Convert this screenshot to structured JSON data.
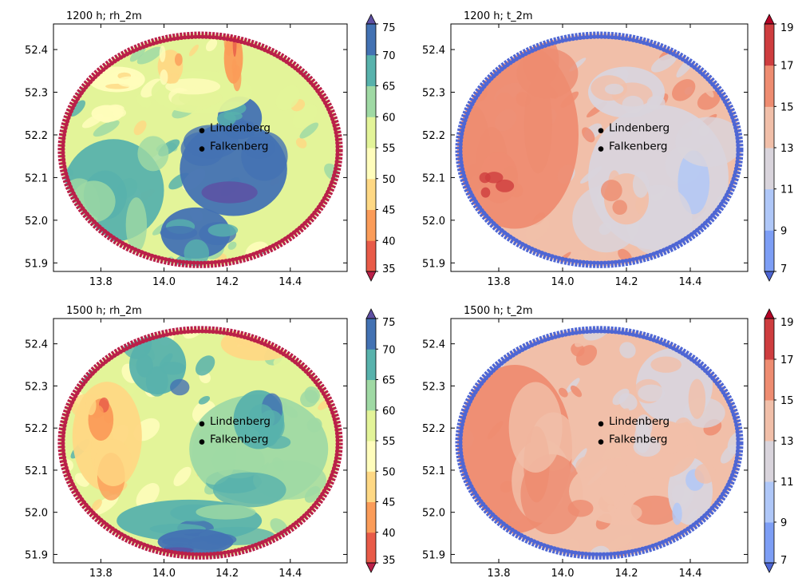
{
  "chart_data": [
    {
      "type": "heatmap",
      "title": "1200 h; rh_2m",
      "variable": "rh_2m",
      "colormap": "Spectral",
      "xlim": [
        13.65,
        14.58
      ],
      "ylim": [
        51.88,
        52.46
      ],
      "xticks": [
        "13.8",
        "14.0",
        "14.2",
        "14.4"
      ],
      "yticks": [
        "51.9",
        "52.0",
        "52.1",
        "52.2",
        "52.3",
        "52.4"
      ],
      "colorbar": {
        "min": 35,
        "max": 75,
        "step": 5,
        "extend": "both",
        "labels": [
          "35",
          "40",
          "45",
          "50",
          "55",
          "60",
          "65",
          "70",
          "75"
        ]
      },
      "annotations": [
        {
          "label": "Lindenberg",
          "lon": 14.12,
          "lat": 52.21
        },
        {
          "label": "Falkenberg",
          "lon": 14.12,
          "lat": 52.167
        }
      ],
      "features": [
        {
          "lon": 14.22,
          "lat": 52.12,
          "rlon": 0.17,
          "rlat": 0.11,
          "value": 74
        },
        {
          "lon": 14.1,
          "lat": 51.97,
          "rlon": 0.11,
          "rlat": 0.06,
          "value": 73
        },
        {
          "lon": 14.24,
          "lat": 52.24,
          "rlon": 0.07,
          "rlat": 0.05,
          "value": 70
        },
        {
          "lon": 13.84,
          "lat": 52.07,
          "rlon": 0.16,
          "rlat": 0.12,
          "value": 65
        },
        {
          "lon": 14.12,
          "lat": 52.3,
          "rlon": 0.16,
          "rlat": 0.05,
          "value": 56
        },
        {
          "lon": 13.85,
          "lat": 52.33,
          "rlon": 0.09,
          "rlat": 0.03,
          "value": 50
        },
        {
          "lon": 14.02,
          "lat": 52.36,
          "rlon": 0.04,
          "rlat": 0.04,
          "value": 47
        },
        {
          "lon": 14.22,
          "lat": 52.38,
          "rlon": 0.03,
          "rlat": 0.06,
          "value": 40
        },
        {
          "lon": 13.82,
          "lat": 52.25,
          "rlon": 0.05,
          "rlat": 0.02,
          "value": 52
        }
      ]
    },
    {
      "type": "heatmap",
      "title": "1200 h; t_2m",
      "variable": "t_2m",
      "colormap": "coolwarm",
      "xlim": [
        13.65,
        14.58
      ],
      "ylim": [
        51.88,
        52.46
      ],
      "xticks": [
        "13.8",
        "14.0",
        "14.2",
        "14.4"
      ],
      "yticks": [
        "51.9",
        "52.0",
        "52.1",
        "52.2",
        "52.3",
        "52.4"
      ],
      "colorbar": {
        "min": 7,
        "max": 19,
        "step": 2,
        "extend": "both",
        "labels": [
          "7",
          "9",
          "11",
          "13",
          "15",
          "17",
          "19"
        ]
      },
      "annotations": [
        {
          "label": "Lindenberg",
          "lon": 14.12,
          "lat": 52.21
        },
        {
          "label": "Falkenberg",
          "lon": 14.12,
          "lat": 52.167
        }
      ],
      "features": [
        {
          "lon": 13.85,
          "lat": 52.2,
          "rlon": 0.2,
          "rlat": 0.22,
          "value": 15.8
        },
        {
          "lon": 14.3,
          "lat": 52.1,
          "rlon": 0.22,
          "rlat": 0.17,
          "value": 11.8
        },
        {
          "lon": 14.2,
          "lat": 52.05,
          "rlon": 0.07,
          "rlat": 0.06,
          "value": 14.3
        },
        {
          "lon": 14.2,
          "lat": 52.3,
          "rlon": 0.12,
          "rlat": 0.06,
          "value": 12.8
        },
        {
          "lon": 13.8,
          "lat": 52.1,
          "rlon": 0.06,
          "rlat": 0.06,
          "value": 16.5
        }
      ]
    },
    {
      "type": "heatmap",
      "title": "1500 h; rh_2m",
      "variable": "rh_2m",
      "colormap": "Spectral",
      "xlim": [
        13.65,
        14.58
      ],
      "ylim": [
        51.88,
        52.46
      ],
      "xticks": [
        "13.8",
        "14.0",
        "14.2",
        "14.4"
      ],
      "yticks": [
        "51.9",
        "52.0",
        "52.1",
        "52.2",
        "52.3",
        "52.4"
      ],
      "colorbar": {
        "min": 35,
        "max": 75,
        "step": 5,
        "extend": "both",
        "labels": [
          "35",
          "40",
          "45",
          "50",
          "55",
          "60",
          "65",
          "70",
          "75"
        ]
      },
      "annotations": [
        {
          "label": "Lindenberg",
          "lon": 14.12,
          "lat": 52.21
        },
        {
          "label": "Falkenberg",
          "lon": 14.12,
          "lat": 52.167
        }
      ],
      "features": [
        {
          "lon": 14.3,
          "lat": 52.15,
          "rlon": 0.22,
          "rlat": 0.13,
          "value": 63
        },
        {
          "lon": 14.08,
          "lat": 51.98,
          "rlon": 0.23,
          "rlat": 0.05,
          "value": 69
        },
        {
          "lon": 13.98,
          "lat": 52.35,
          "rlon": 0.09,
          "rlat": 0.07,
          "value": 69
        },
        {
          "lon": 13.82,
          "lat": 52.18,
          "rlon": 0.11,
          "rlat": 0.13,
          "value": 46
        },
        {
          "lon": 13.8,
          "lat": 52.22,
          "rlon": 0.04,
          "rlat": 0.05,
          "value": 41
        },
        {
          "lon": 14.3,
          "lat": 52.4,
          "rlon": 0.12,
          "rlat": 0.04,
          "value": 48
        },
        {
          "lon": 14.3,
          "lat": 52.22,
          "rlon": 0.08,
          "rlat": 0.07,
          "value": 67
        },
        {
          "lon": 14.1,
          "lat": 51.93,
          "rlon": 0.12,
          "rlat": 0.03,
          "value": 72
        }
      ]
    },
    {
      "type": "heatmap",
      "title": "1500 h; t_2m",
      "variable": "t_2m",
      "colormap": "coolwarm",
      "xlim": [
        13.65,
        14.58
      ],
      "ylim": [
        51.88,
        52.46
      ],
      "xticks": [
        "13.8",
        "14.0",
        "14.2",
        "14.4"
      ],
      "yticks": [
        "51.9",
        "52.0",
        "52.1",
        "52.2",
        "52.3",
        "52.4"
      ],
      "colorbar": {
        "min": 7,
        "max": 19,
        "step": 2,
        "extend": "both",
        "labels": [
          "7",
          "9",
          "11",
          "13",
          "15",
          "17",
          "19"
        ]
      },
      "annotations": [
        {
          "label": "Lindenberg",
          "lon": 14.12,
          "lat": 52.21
        },
        {
          "label": "Falkenberg",
          "lon": 14.12,
          "lat": 52.167
        }
      ],
      "features": [
        {
          "lon": 13.85,
          "lat": 52.15,
          "rlon": 0.18,
          "rlat": 0.2,
          "value": 15.5
        },
        {
          "lon": 14.35,
          "lat": 52.3,
          "rlon": 0.12,
          "rlat": 0.09,
          "value": 12.2
        },
        {
          "lon": 14.2,
          "lat": 52.05,
          "rlon": 0.18,
          "rlat": 0.08,
          "value": 14.2
        },
        {
          "lon": 14.4,
          "lat": 52.05,
          "rlon": 0.07,
          "rlat": 0.08,
          "value": 12.3
        },
        {
          "lon": 14.3,
          "lat": 52.15,
          "rlon": 0.12,
          "rlat": 0.07,
          "value": 13.6
        }
      ]
    }
  ]
}
